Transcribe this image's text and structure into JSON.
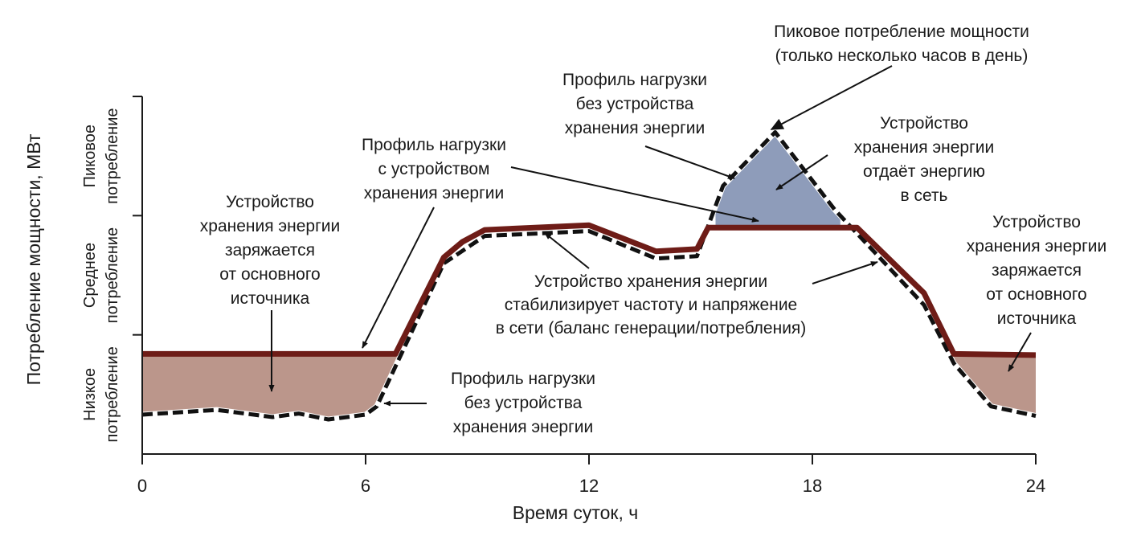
{
  "chart_data": {
    "type": "area",
    "xlabel": "Время суток, ч",
    "ylabel": "Потребление мощности, МВт",
    "xlim": [
      0,
      24
    ],
    "ylim": [
      0,
      3
    ],
    "x_ticks": [
      "0",
      "6",
      "12",
      "18",
      "24"
    ],
    "y_bands": [
      {
        "lines": [
          "Низкое",
          "потребление"
        ]
      },
      {
        "lines": [
          "Среднее",
          "потребление"
        ]
      },
      {
        "lines": [
          "Пиковое",
          "потребление"
        ]
      }
    ],
    "series": [
      {
        "name": "Профиль нагрузки с устройством хранения энергии",
        "x": [
          0,
          6.8,
          8.1,
          8.6,
          9.2,
          12,
          13.8,
          14.9,
          15.2,
          19.2,
          21,
          21.8,
          24
        ],
        "y": [
          0.84,
          0.84,
          1.65,
          1.78,
          1.88,
          1.92,
          1.7,
          1.72,
          1.9,
          1.9,
          1.35,
          0.84,
          0.83
        ]
      },
      {
        "name": "Профиль нагрузки без устройства хранения энергии",
        "x": [
          0,
          2,
          3.5,
          4.2,
          5,
          6,
          6.3,
          8.1,
          9.2,
          12,
          13.8,
          14.9,
          15.6,
          17,
          18.6,
          21,
          21.8,
          22.8,
          24
        ],
        "y": [
          0.33,
          0.37,
          0.31,
          0.34,
          0.29,
          0.33,
          0.4,
          1.6,
          1.83,
          1.87,
          1.64,
          1.66,
          2.25,
          2.7,
          2.05,
          1.25,
          0.76,
          0.4,
          0.32
        ]
      }
    ],
    "fills": [
      {
        "meaning": "charging",
        "color": "#bb968b"
      },
      {
        "meaning": "discharging",
        "color": "#8e9cba"
      }
    ],
    "annotations": {
      "peak": [
        "Пиковое потребление мощности",
        "(только несколько часов в день)"
      ],
      "profile_without_top": [
        "Профиль нагрузки",
        "без устройства",
        "хранения энергии"
      ],
      "profile_with": [
        "Профиль нагрузки",
        "с устройством",
        "хранения энергии"
      ],
      "storage_gives": [
        "Устройство",
        "хранения энергии",
        "отдаёт энергию",
        "в сеть"
      ],
      "charge_left": [
        "Устройство",
        "хранения энергии",
        "заряжается",
        "от основного",
        "источника"
      ],
      "charge_right": [
        "Устройство",
        "хранения энергии",
        "заряжается",
        "от основного",
        "источника"
      ],
      "stabilize": [
        "Устройство хранения энергии",
        "стабилизирует частоту и напряжение",
        "в сети (баланс генерации/потребления)"
      ],
      "profile_without_bottom": [
        "Профиль нагрузки",
        "без устройства",
        "хранения энергии"
      ]
    },
    "colors": {
      "line_with": "#6e1c17",
      "line_without": "#111111",
      "axis": "#1a1a1a"
    }
  }
}
